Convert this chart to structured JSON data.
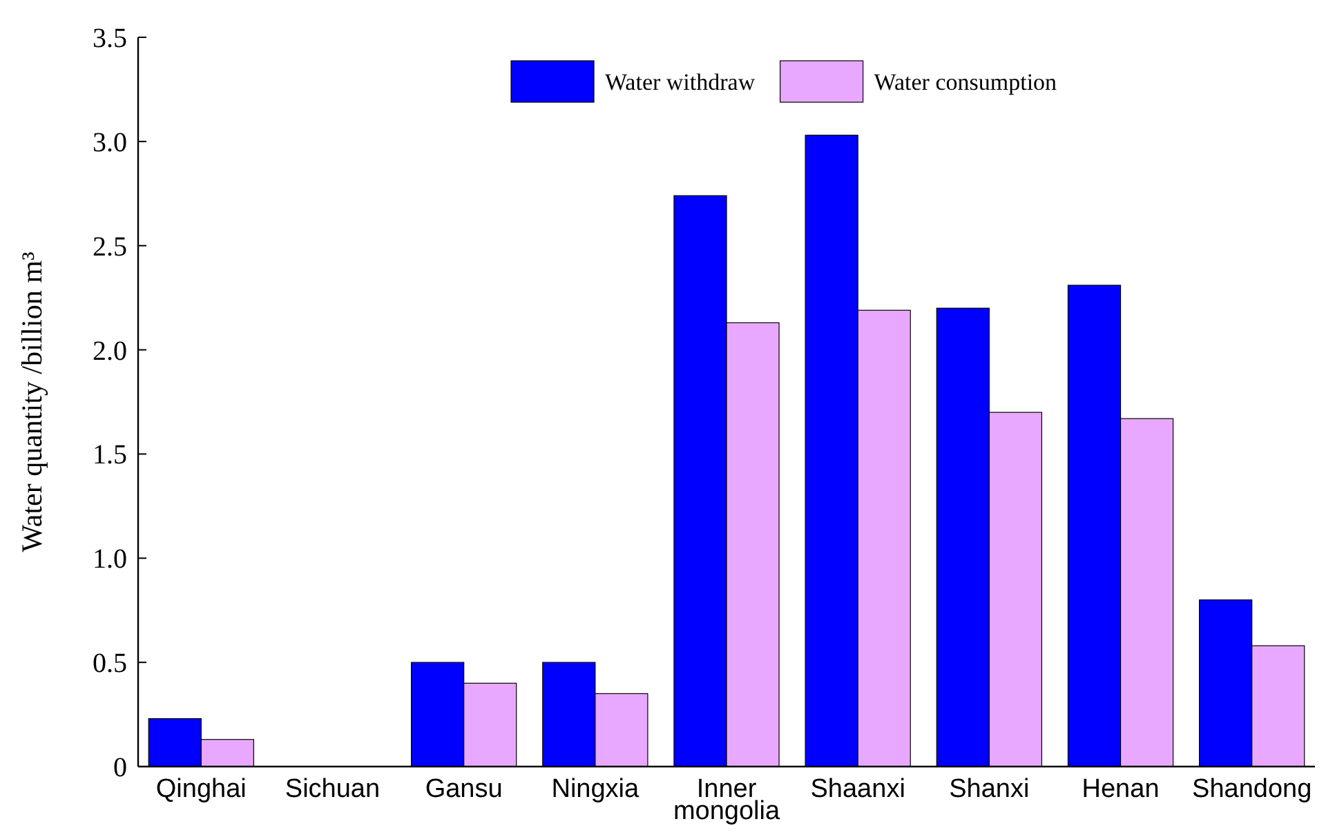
{
  "chart_data": {
    "type": "bar",
    "ylabel": "Water quantity /billion m³",
    "categories": [
      "Qinghai",
      "Sichuan",
      "Gansu",
      "Ningxia",
      "Inner mongolia",
      "Shaanxi",
      "Shanxi",
      "Henan",
      "Shandong"
    ],
    "series": [
      {
        "name": "Water withdraw",
        "color": "#0000ff",
        "values": [
          0.23,
          0,
          0.5,
          0.5,
          2.74,
          3.03,
          2.2,
          2.31,
          0.8
        ]
      },
      {
        "name": "Water consumption",
        "color": "#e8a8ff",
        "values": [
          0.13,
          0,
          0.4,
          0.35,
          2.13,
          2.19,
          1.7,
          1.67,
          0.58
        ]
      }
    ],
    "ylim": [
      0,
      3.5
    ],
    "yticks": [
      {
        "value": 0,
        "label": "0"
      },
      0.5,
      {
        "value": 1,
        "label": "1.0"
      },
      1.5,
      {
        "value": 2,
        "label": "2.0"
      },
      2.5,
      {
        "value": 3,
        "label": "3.0"
      },
      3.5
    ],
    "legend": "top",
    "grid": false
  }
}
